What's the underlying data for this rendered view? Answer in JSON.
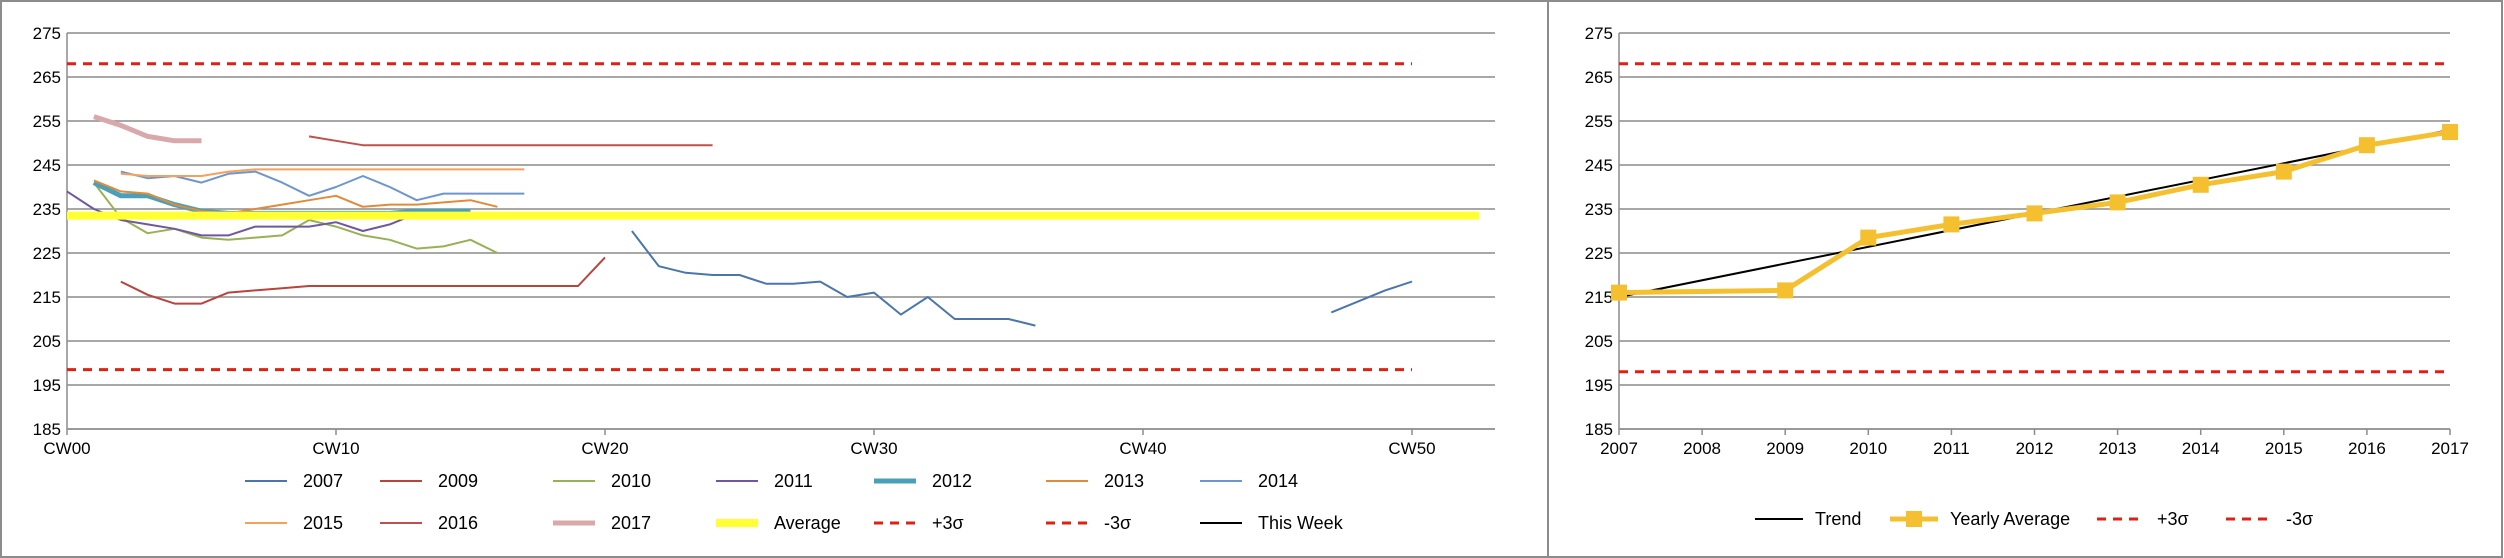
{
  "chart_data": [
    {
      "type": "line",
      "ylim": [
        185,
        275
      ],
      "yticks": [
        "185",
        "195",
        "205",
        "215",
        "225",
        "235",
        "245",
        "255",
        "265",
        "275"
      ],
      "xlim": [
        0,
        53
      ],
      "xticks": [
        {
          "value": 0,
          "label": "CW00"
        },
        {
          "value": 10,
          "label": "CW10"
        },
        {
          "value": 20,
          "label": "CW20"
        },
        {
          "value": 30,
          "label": "CW30"
        },
        {
          "value": 40,
          "label": "CW40"
        },
        {
          "value": 50,
          "label": "CW50"
        }
      ],
      "legend_position": "bottom",
      "series": [
        {
          "name": "2007",
          "color": "#4a76ad",
          "width": 2,
          "segments": [
            [
              [
                21,
                230
              ],
              [
                22,
                222
              ],
              [
                23,
                220.5
              ],
              [
                24,
                220
              ],
              [
                25,
                220
              ],
              [
                26,
                218
              ],
              [
                27,
                218
              ],
              [
                28,
                218.5
              ],
              [
                29,
                215
              ],
              [
                30,
                216
              ],
              [
                31,
                211
              ],
              [
                32,
                215
              ],
              [
                33,
                210
              ],
              [
                34,
                210
              ],
              [
                35,
                210
              ],
              [
                36,
                208.5
              ]
            ],
            [
              [
                47,
                211.5
              ],
              [
                48,
                214
              ],
              [
                49,
                216.5
              ],
              [
                50,
                218.5
              ]
            ]
          ]
        },
        {
          "name": "2009",
          "color": "#b8443d",
          "width": 2,
          "segments": [
            [
              [
                2,
                218.5
              ],
              [
                3,
                215.5
              ],
              [
                4,
                213.5
              ],
              [
                5,
                213.5
              ],
              [
                6,
                216
              ],
              [
                7,
                216.5
              ],
              [
                8,
                217
              ],
              [
                9,
                217.5
              ],
              [
                10,
                217.5
              ],
              [
                11,
                217.5
              ],
              [
                12,
                217.5
              ],
              [
                13,
                217.5
              ],
              [
                14,
                217.5
              ],
              [
                15,
                217.5
              ],
              [
                16,
                217.5
              ],
              [
                17,
                217.5
              ],
              [
                18,
                217.5
              ],
              [
                19,
                217.5
              ],
              [
                20,
                224
              ]
            ]
          ]
        },
        {
          "name": "2010",
          "color": "#98b154",
          "width": 2,
          "segments": [
            [
              [
                1,
                241
              ],
              [
                2,
                233
              ],
              [
                3,
                229.5
              ],
              [
                4,
                230.5
              ],
              [
                5,
                228.5
              ],
              [
                6,
                228
              ],
              [
                7,
                228.5
              ],
              [
                8,
                229
              ],
              [
                9,
                232.5
              ],
              [
                10,
                231
              ],
              [
                11,
                229
              ],
              [
                12,
                228
              ],
              [
                13,
                226
              ],
              [
                14,
                226.5
              ],
              [
                15,
                228
              ],
              [
                16,
                225
              ]
            ]
          ]
        },
        {
          "name": "2011",
          "color": "#7058a0",
          "width": 2,
          "segments": [
            [
              [
                0,
                239
              ],
              [
                1,
                235
              ],
              [
                2,
                232.5
              ],
              [
                3,
                231.5
              ],
              [
                4,
                230.5
              ],
              [
                5,
                229
              ],
              [
                6,
                229
              ],
              [
                7,
                231
              ],
              [
                8,
                231
              ],
              [
                9,
                231
              ],
              [
                10,
                232
              ],
              [
                11,
                230
              ],
              [
                12,
                231.5
              ],
              [
                13,
                234
              ]
            ]
          ]
        },
        {
          "name": "2012",
          "color": "#4aa0b8",
          "width": 5,
          "segments": [
            [
              [
                1,
                241
              ],
              [
                2,
                238
              ],
              [
                3,
                238
              ],
              [
                4,
                236
              ],
              [
                5,
                234.5
              ],
              [
                6,
                234
              ],
              [
                7,
                234
              ],
              [
                8,
                234
              ],
              [
                9,
                234
              ],
              [
                10,
                234
              ],
              [
                11,
                234
              ],
              [
                12,
                234
              ],
              [
                13,
                234.5
              ],
              [
                14,
                234.5
              ],
              [
                15,
                234.5
              ]
            ]
          ]
        },
        {
          "name": "2013",
          "color": "#e08b3a",
          "width": 2,
          "segments": [
            [
              [
                1,
                241.5
              ],
              [
                2,
                239
              ],
              [
                3,
                238.5
              ],
              [
                4,
                236
              ],
              [
                5,
                234.5
              ],
              [
                6,
                234
              ],
              [
                7,
                235
              ],
              [
                8,
                236
              ],
              [
                9,
                237
              ],
              [
                10,
                238
              ],
              [
                11,
                235.5
              ],
              [
                12,
                236
              ],
              [
                13,
                236
              ],
              [
                14,
                236.5
              ],
              [
                15,
                237
              ],
              [
                16,
                235.5
              ]
            ]
          ]
        },
        {
          "name": "2014",
          "color": "#6d96cf",
          "width": 2,
          "segments": [
            [
              [
                2,
                243.5
              ],
              [
                3,
                242
              ],
              [
                4,
                242.5
              ],
              [
                5,
                241
              ],
              [
                6,
                243
              ],
              [
                7,
                243.5
              ],
              [
                8,
                241
              ],
              [
                9,
                238
              ],
              [
                10,
                240
              ],
              [
                11,
                242.5
              ],
              [
                12,
                240
              ],
              [
                13,
                237
              ],
              [
                14,
                238.5
              ],
              [
                15,
                238.5
              ],
              [
                16,
                238.5
              ],
              [
                17,
                238.5
              ]
            ]
          ]
        },
        {
          "name": "2015",
          "color": "#f2a25a",
          "width": 2,
          "segments": [
            [
              [
                2,
                243
              ],
              [
                3,
                242.5
              ],
              [
                4,
                242.5
              ],
              [
                5,
                242.5
              ],
              [
                6,
                243.5
              ],
              [
                7,
                244
              ],
              [
                8,
                244
              ],
              [
                9,
                244
              ],
              [
                10,
                244
              ],
              [
                11,
                244
              ],
              [
                12,
                244
              ],
              [
                13,
                244
              ],
              [
                14,
                244
              ],
              [
                15,
                244
              ],
              [
                16,
                244
              ],
              [
                17,
                244
              ]
            ]
          ]
        },
        {
          "name": "2016",
          "color": "#c0504d",
          "width": 2,
          "segments": [
            [
              [
                9,
                251.5
              ],
              [
                10,
                250.5
              ],
              [
                11,
                249.5
              ],
              [
                12,
                249.5
              ],
              [
                13,
                249.5
              ],
              [
                14,
                249.5
              ],
              [
                15,
                249.5
              ],
              [
                16,
                249.5
              ],
              [
                17,
                249.5
              ],
              [
                18,
                249.5
              ],
              [
                19,
                249.5
              ],
              [
                20,
                249.5
              ],
              [
                21,
                249.5
              ],
              [
                22,
                249.5
              ],
              [
                23,
                249.5
              ],
              [
                24,
                249.5
              ]
            ]
          ]
        },
        {
          "name": "2017",
          "color": "#d9a8ab",
          "width": 5,
          "segments": [
            [
              [
                1,
                256
              ],
              [
                2,
                254
              ],
              [
                3,
                251.5
              ],
              [
                4,
                250.5
              ],
              [
                5,
                250.5
              ]
            ]
          ]
        },
        {
          "name": "Average",
          "color": "#ffff33",
          "width": 8,
          "segments": [
            [
              [
                0,
                233.5
              ],
              [
                52.5,
                233.5
              ]
            ]
          ]
        },
        {
          "name": "+3σ",
          "color": "#e02010",
          "width": 3,
          "dash": "9,7",
          "segments": [
            [
              [
                0,
                268
              ],
              [
                50,
                268
              ]
            ]
          ]
        },
        {
          "name": "-3σ",
          "color": "#e02010",
          "width": 3,
          "dash": "9,7",
          "segments": [
            [
              [
                0,
                198.5
              ],
              [
                50,
                198.5
              ]
            ]
          ]
        },
        {
          "name": "This Week",
          "color": "#000000",
          "width": 2,
          "segments": []
        }
      ]
    },
    {
      "type": "line",
      "ylim": [
        185,
        275
      ],
      "yticks": [
        "185",
        "195",
        "205",
        "215",
        "225",
        "235",
        "245",
        "255",
        "265",
        "275"
      ],
      "categories": [
        "2007",
        "2008",
        "2009",
        "2010",
        "2011",
        "2012",
        "2013",
        "2014",
        "2015",
        "2016",
        "2017"
      ],
      "legend_position": "bottom",
      "series": [
        {
          "name": "Trend",
          "color": "#000000",
          "width": 2,
          "points": [
            [
              0,
              215
            ],
            [
              10,
              253
            ]
          ]
        },
        {
          "name": "Yearly Average",
          "color": "#f5c02f",
          "width": 5,
          "marker": "square",
          "points": [
            [
              0,
              216
            ],
            [
              2,
              216.5
            ],
            [
              3,
              228.5
            ],
            [
              4,
              231.5
            ],
            [
              5,
              234
            ],
            [
              6,
              236.5
            ],
            [
              7,
              240.5
            ],
            [
              8,
              243.5
            ],
            [
              9,
              249.5
            ],
            [
              10,
              252.5
            ]
          ]
        },
        {
          "name": "+3σ",
          "color": "#e02010",
          "width": 3,
          "dash": "9,7",
          "points": [
            [
              0,
              268
            ],
            [
              10,
              268
            ]
          ]
        },
        {
          "name": "-3σ",
          "color": "#e02010",
          "width": 3,
          "dash": "9,7",
          "points": [
            [
              0,
              198
            ],
            [
              10,
              198
            ]
          ]
        }
      ]
    }
  ]
}
